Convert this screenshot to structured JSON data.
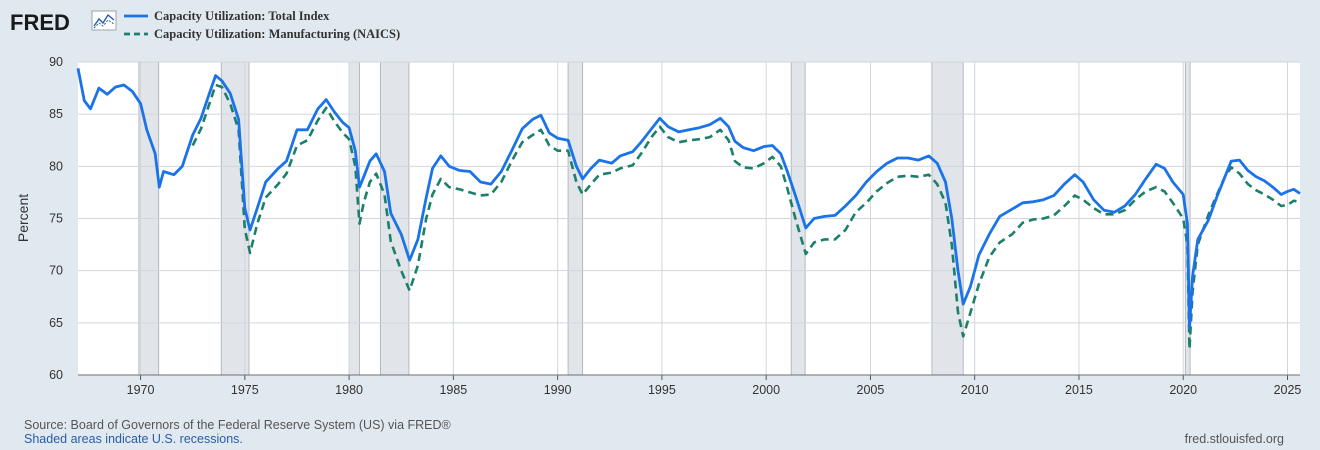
{
  "logo": {
    "text": "FRED",
    "icon": "line-chart-icon"
  },
  "chart_data": {
    "type": "line",
    "title": "",
    "xlabel": "",
    "ylabel": "Percent",
    "xlim": [
      1967.0,
      2025.6
    ],
    "ylim": [
      60,
      90
    ],
    "yticks": [
      60,
      65,
      70,
      75,
      80,
      85,
      90
    ],
    "xticks": [
      1970,
      1975,
      1980,
      1985,
      1990,
      1995,
      2000,
      2005,
      2010,
      2015,
      2020,
      2025
    ],
    "grid": true,
    "legend_position": "top-left",
    "recessions": [
      [
        1969.92,
        1970.87
      ],
      [
        1973.87,
        1975.2
      ],
      [
        1980.0,
        1980.5
      ],
      [
        1981.5,
        1982.87
      ],
      [
        1990.5,
        1991.2
      ],
      [
        2001.2,
        2001.87
      ],
      [
        2007.95,
        2009.45
      ],
      [
        2020.1,
        2020.33
      ]
    ],
    "series": [
      {
        "name": "Capacity Utilization: Total Index",
        "color": "#1a73e8",
        "style": "solid",
        "points": [
          [
            1967.0,
            89.4
          ],
          [
            1967.3,
            86.3
          ],
          [
            1967.6,
            85.5
          ],
          [
            1968.0,
            87.5
          ],
          [
            1968.4,
            86.9
          ],
          [
            1968.8,
            87.6
          ],
          [
            1969.2,
            87.8
          ],
          [
            1969.6,
            87.2
          ],
          [
            1970.0,
            86.0
          ],
          [
            1970.3,
            83.5
          ],
          [
            1970.7,
            81.2
          ],
          [
            1970.9,
            78.0
          ],
          [
            1971.1,
            79.5
          ],
          [
            1971.6,
            79.2
          ],
          [
            1972.0,
            80.0
          ],
          [
            1972.5,
            83.0
          ],
          [
            1972.9,
            84.6
          ],
          [
            1973.3,
            87.0
          ],
          [
            1973.6,
            88.7
          ],
          [
            1973.9,
            88.2
          ],
          [
            1974.3,
            87.0
          ],
          [
            1974.7,
            84.5
          ],
          [
            1975.0,
            76.0
          ],
          [
            1975.25,
            73.9
          ],
          [
            1975.6,
            76.0
          ],
          [
            1976.0,
            78.5
          ],
          [
            1976.6,
            79.8
          ],
          [
            1977.0,
            80.5
          ],
          [
            1977.5,
            83.5
          ],
          [
            1978.0,
            83.5
          ],
          [
            1978.5,
            85.5
          ],
          [
            1978.9,
            86.4
          ],
          [
            1979.3,
            85.2
          ],
          [
            1979.7,
            84.2
          ],
          [
            1980.0,
            83.7
          ],
          [
            1980.3,
            81.5
          ],
          [
            1980.5,
            78.0
          ],
          [
            1980.7,
            79.0
          ],
          [
            1981.0,
            80.5
          ],
          [
            1981.3,
            81.2
          ],
          [
            1981.7,
            79.5
          ],
          [
            1982.0,
            75.5
          ],
          [
            1982.5,
            73.5
          ],
          [
            1982.9,
            71.0
          ],
          [
            1983.3,
            73.0
          ],
          [
            1983.7,
            77.0
          ],
          [
            1984.0,
            79.8
          ],
          [
            1984.4,
            81.0
          ],
          [
            1984.8,
            80.0
          ],
          [
            1985.3,
            79.6
          ],
          [
            1985.8,
            79.5
          ],
          [
            1986.3,
            78.5
          ],
          [
            1986.8,
            78.3
          ],
          [
            1987.3,
            79.5
          ],
          [
            1987.8,
            81.5
          ],
          [
            1988.3,
            83.6
          ],
          [
            1988.8,
            84.5
          ],
          [
            1989.2,
            84.9
          ],
          [
            1989.6,
            83.2
          ],
          [
            1990.0,
            82.7
          ],
          [
            1990.5,
            82.5
          ],
          [
            1990.9,
            80.0
          ],
          [
            1991.2,
            78.8
          ],
          [
            1991.6,
            79.8
          ],
          [
            1992.0,
            80.6
          ],
          [
            1992.6,
            80.3
          ],
          [
            1993.0,
            81.0
          ],
          [
            1993.6,
            81.4
          ],
          [
            1994.0,
            82.3
          ],
          [
            1994.5,
            83.6
          ],
          [
            1994.9,
            84.6
          ],
          [
            1995.3,
            83.8
          ],
          [
            1995.8,
            83.3
          ],
          [
            1996.3,
            83.5
          ],
          [
            1996.8,
            83.7
          ],
          [
            1997.3,
            84.0
          ],
          [
            1997.8,
            84.6
          ],
          [
            1998.2,
            83.8
          ],
          [
            1998.5,
            82.4
          ],
          [
            1998.9,
            81.8
          ],
          [
            1999.4,
            81.5
          ],
          [
            1999.9,
            81.9
          ],
          [
            2000.3,
            82.0
          ],
          [
            2000.7,
            81.2
          ],
          [
            2001.0,
            79.6
          ],
          [
            2001.4,
            77.2
          ],
          [
            2001.9,
            74.1
          ],
          [
            2002.3,
            75.0
          ],
          [
            2002.8,
            75.2
          ],
          [
            2003.3,
            75.3
          ],
          [
            2003.8,
            76.2
          ],
          [
            2004.3,
            77.2
          ],
          [
            2004.8,
            78.5
          ],
          [
            2005.3,
            79.5
          ],
          [
            2005.8,
            80.3
          ],
          [
            2006.3,
            80.8
          ],
          [
            2006.8,
            80.8
          ],
          [
            2007.3,
            80.6
          ],
          [
            2007.8,
            81.0
          ],
          [
            2008.2,
            80.3
          ],
          [
            2008.6,
            78.5
          ],
          [
            2008.9,
            75.0
          ],
          [
            2009.2,
            70.0
          ],
          [
            2009.45,
            66.8
          ],
          [
            2009.8,
            68.5
          ],
          [
            2010.2,
            71.5
          ],
          [
            2010.7,
            73.5
          ],
          [
            2011.2,
            75.2
          ],
          [
            2011.8,
            75.9
          ],
          [
            2012.3,
            76.5
          ],
          [
            2012.8,
            76.6
          ],
          [
            2013.3,
            76.8
          ],
          [
            2013.8,
            77.2
          ],
          [
            2014.3,
            78.3
          ],
          [
            2014.8,
            79.2
          ],
          [
            2015.2,
            78.5
          ],
          [
            2015.7,
            76.8
          ],
          [
            2016.2,
            75.8
          ],
          [
            2016.7,
            75.6
          ],
          [
            2017.2,
            76.2
          ],
          [
            2017.7,
            77.3
          ],
          [
            2018.2,
            78.8
          ],
          [
            2018.7,
            80.2
          ],
          [
            2019.1,
            79.8
          ],
          [
            2019.5,
            78.5
          ],
          [
            2020.0,
            77.3
          ],
          [
            2020.2,
            74.5
          ],
          [
            2020.3,
            64.5
          ],
          [
            2020.45,
            69.5
          ],
          [
            2020.7,
            73.0
          ],
          [
            2021.2,
            74.8
          ],
          [
            2021.6,
            77.0
          ],
          [
            2022.0,
            79.0
          ],
          [
            2022.3,
            80.5
          ],
          [
            2022.7,
            80.6
          ],
          [
            2023.1,
            79.6
          ],
          [
            2023.5,
            79.0
          ],
          [
            2023.9,
            78.6
          ],
          [
            2024.3,
            78.0
          ],
          [
            2024.7,
            77.3
          ],
          [
            2025.0,
            77.6
          ],
          [
            2025.3,
            77.8
          ],
          [
            2025.6,
            77.4
          ]
        ]
      },
      {
        "name": "Capacity Utilization: Manufacturing (NAICS)",
        "color": "#1b7f6b",
        "style": "dashed",
        "points": [
          [
            1972.5,
            82.0
          ],
          [
            1972.9,
            83.6
          ],
          [
            1973.3,
            86.0
          ],
          [
            1973.6,
            87.8
          ],
          [
            1973.9,
            87.6
          ],
          [
            1974.3,
            86.0
          ],
          [
            1974.7,
            83.5
          ],
          [
            1975.0,
            74.0
          ],
          [
            1975.25,
            71.7
          ],
          [
            1975.6,
            74.5
          ],
          [
            1976.0,
            77.0
          ],
          [
            1976.6,
            78.3
          ],
          [
            1977.0,
            79.3
          ],
          [
            1977.5,
            82.0
          ],
          [
            1978.0,
            82.5
          ],
          [
            1978.5,
            84.4
          ],
          [
            1978.9,
            85.6
          ],
          [
            1979.3,
            84.3
          ],
          [
            1979.7,
            83.2
          ],
          [
            1980.0,
            82.6
          ],
          [
            1980.3,
            80.0
          ],
          [
            1980.5,
            74.5
          ],
          [
            1980.7,
            76.5
          ],
          [
            1981.0,
            78.5
          ],
          [
            1981.3,
            79.3
          ],
          [
            1981.7,
            77.3
          ],
          [
            1982.0,
            72.8
          ],
          [
            1982.5,
            70.0
          ],
          [
            1982.9,
            68.1
          ],
          [
            1983.3,
            70.5
          ],
          [
            1983.7,
            75.0
          ],
          [
            1984.0,
            77.3
          ],
          [
            1984.4,
            78.8
          ],
          [
            1984.8,
            78.0
          ],
          [
            1985.3,
            77.8
          ],
          [
            1985.8,
            77.5
          ],
          [
            1986.3,
            77.2
          ],
          [
            1986.8,
            77.3
          ],
          [
            1987.3,
            78.5
          ],
          [
            1987.8,
            80.5
          ],
          [
            1988.3,
            82.3
          ],
          [
            1988.8,
            83.0
          ],
          [
            1989.2,
            83.5
          ],
          [
            1989.6,
            82.0
          ],
          [
            1990.0,
            81.5
          ],
          [
            1990.5,
            81.5
          ],
          [
            1990.9,
            78.5
          ],
          [
            1991.2,
            77.3
          ],
          [
            1991.6,
            78.3
          ],
          [
            1992.0,
            79.2
          ],
          [
            1992.6,
            79.4
          ],
          [
            1993.0,
            79.8
          ],
          [
            1993.6,
            80.1
          ],
          [
            1994.0,
            81.2
          ],
          [
            1994.5,
            82.8
          ],
          [
            1994.9,
            83.8
          ],
          [
            1995.3,
            82.8
          ],
          [
            1995.8,
            82.3
          ],
          [
            1996.3,
            82.5
          ],
          [
            1996.8,
            82.6
          ],
          [
            1997.3,
            82.8
          ],
          [
            1997.8,
            83.5
          ],
          [
            1998.2,
            82.5
          ],
          [
            1998.5,
            80.5
          ],
          [
            1998.9,
            79.9
          ],
          [
            1999.4,
            79.8
          ],
          [
            1999.9,
            80.3
          ],
          [
            2000.3,
            80.9
          ],
          [
            2000.7,
            80.0
          ],
          [
            2001.0,
            78.0
          ],
          [
            2001.4,
            75.0
          ],
          [
            2001.9,
            71.6
          ],
          [
            2002.3,
            72.7
          ],
          [
            2002.8,
            73.0
          ],
          [
            2003.3,
            73.0
          ],
          [
            2003.8,
            73.9
          ],
          [
            2004.3,
            75.6
          ],
          [
            2004.8,
            76.5
          ],
          [
            2005.3,
            77.6
          ],
          [
            2005.8,
            78.4
          ],
          [
            2006.3,
            79.0
          ],
          [
            2006.8,
            79.1
          ],
          [
            2007.3,
            79.0
          ],
          [
            2007.8,
            79.2
          ],
          [
            2008.2,
            78.3
          ],
          [
            2008.6,
            76.5
          ],
          [
            2008.9,
            72.5
          ],
          [
            2009.2,
            66.0
          ],
          [
            2009.45,
            63.7
          ],
          [
            2009.8,
            66.0
          ],
          [
            2010.2,
            68.7
          ],
          [
            2010.7,
            71.3
          ],
          [
            2011.2,
            72.7
          ],
          [
            2011.8,
            73.5
          ],
          [
            2012.3,
            74.6
          ],
          [
            2012.8,
            74.9
          ],
          [
            2013.3,
            75.0
          ],
          [
            2013.8,
            75.3
          ],
          [
            2014.3,
            76.2
          ],
          [
            2014.8,
            77.2
          ],
          [
            2015.2,
            76.8
          ],
          [
            2015.7,
            76.0
          ],
          [
            2016.2,
            75.4
          ],
          [
            2016.7,
            75.4
          ],
          [
            2017.2,
            75.8
          ],
          [
            2017.7,
            76.8
          ],
          [
            2018.2,
            77.6
          ],
          [
            2018.7,
            78.0
          ],
          [
            2019.1,
            77.6
          ],
          [
            2019.5,
            76.5
          ],
          [
            2020.0,
            75.0
          ],
          [
            2020.2,
            72.5
          ],
          [
            2020.3,
            62.5
          ],
          [
            2020.45,
            68.0
          ],
          [
            2020.7,
            72.5
          ],
          [
            2021.2,
            75.3
          ],
          [
            2021.6,
            77.2
          ],
          [
            2022.0,
            79.0
          ],
          [
            2022.3,
            79.9
          ],
          [
            2022.7,
            79.3
          ],
          [
            2023.1,
            78.3
          ],
          [
            2023.5,
            77.7
          ],
          [
            2023.9,
            77.3
          ],
          [
            2024.3,
            76.8
          ],
          [
            2024.7,
            76.2
          ],
          [
            2025.0,
            76.3
          ],
          [
            2025.3,
            76.7
          ],
          [
            2025.6,
            76.6
          ]
        ]
      }
    ]
  },
  "footer": {
    "source": "Source: Board of Governors of the Federal Reserve System (US) via FRED®",
    "recession_note": "Shaded areas indicate U.S. recessions.",
    "site": "fred.stlouisfed.org"
  }
}
